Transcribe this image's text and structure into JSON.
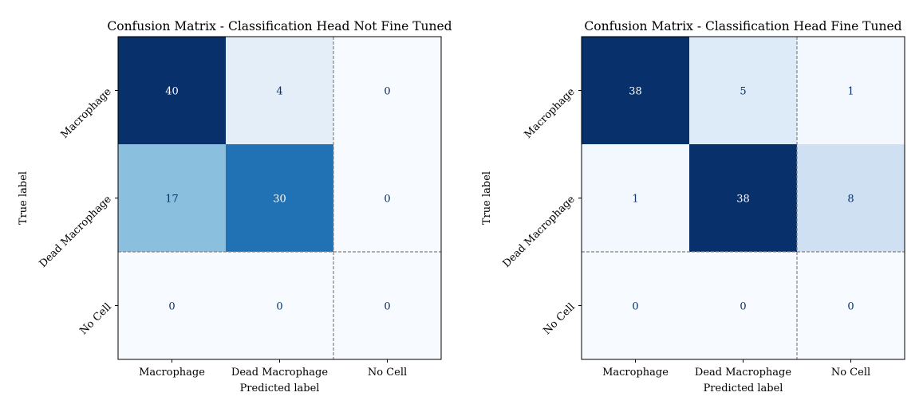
{
  "chart_data": [
    {
      "type": "heatmap",
      "title": "Confusion Matrix - Classification Head Not Fine Tuned",
      "xlabel": "Predicted label",
      "ylabel": "True label",
      "x_categories": [
        "Macrophage",
        "Dead Macrophage",
        "No Cell"
      ],
      "y_categories": [
        "Macrophage",
        "Dead Macrophage",
        "No Cell"
      ],
      "values": [
        [
          40,
          4,
          0
        ],
        [
          17,
          30,
          0
        ],
        [
          0,
          0,
          0
        ]
      ],
      "colormap": "Blues",
      "dashed_separators": "between column 2 and 3; between row 2 and 3"
    },
    {
      "type": "heatmap",
      "title": "Confusion Matrix - Classification Head Fine Tuned",
      "xlabel": "Predicted label",
      "ylabel": "True label",
      "x_categories": [
        "Macrophage",
        "Dead Macrophage",
        "No Cell"
      ],
      "y_categories": [
        "Macrophage",
        "Dead Macrophage",
        "No Cell"
      ],
      "values": [
        [
          38,
          5,
          1
        ],
        [
          1,
          38,
          8
        ],
        [
          0,
          0,
          0
        ]
      ],
      "colormap": "Blues",
      "dashed_separators": "between column 2 and 3; between row 2 and 3"
    }
  ],
  "colors": {
    "blues_low": "#f7fbff",
    "blues_high": "#08306b",
    "separator": "#808080",
    "text_dark": "#08306b",
    "text_light": "#ffffff"
  }
}
